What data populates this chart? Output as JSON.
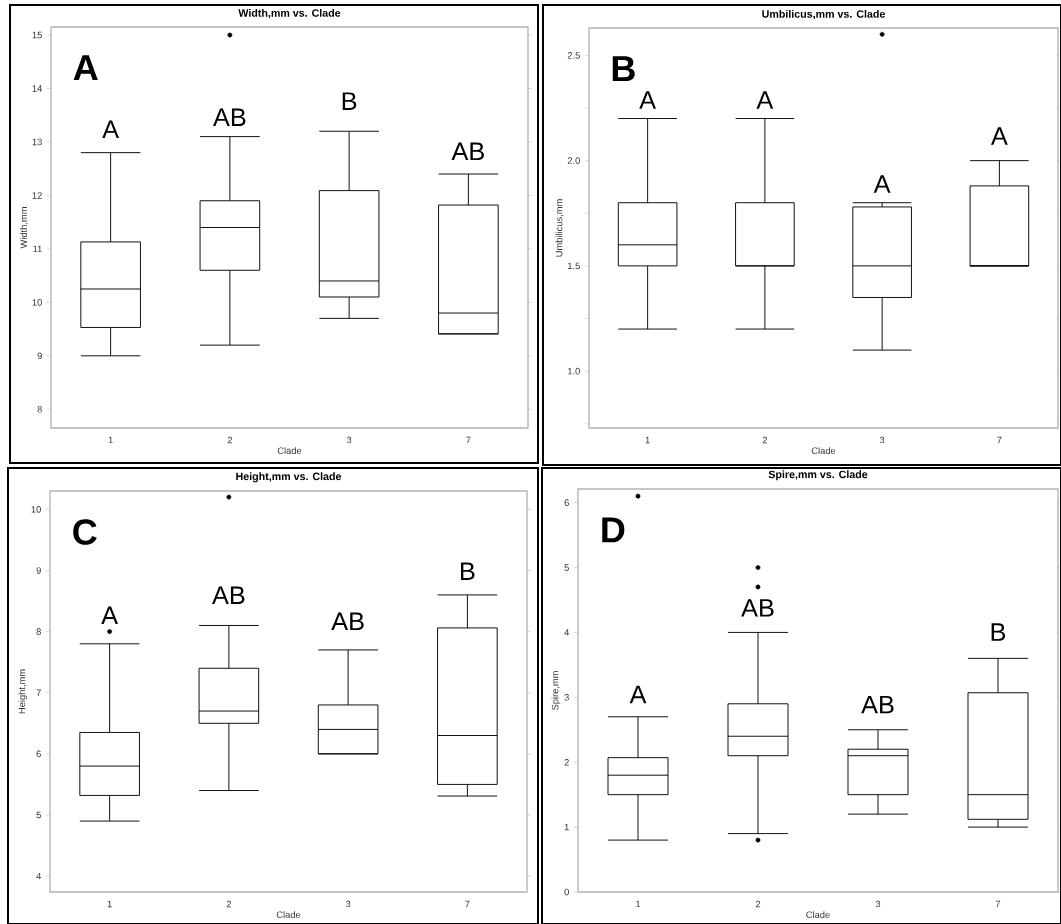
{
  "chart_data": [
    {
      "type": "box",
      "title": "Width,mm vs. Clade",
      "xlabel": "Clade",
      "ylabel": "Width,mm",
      "categories": [
        "1",
        "2",
        "3",
        "7"
      ],
      "boxes": [
        {
          "low": 9.0,
          "q1": 9.53,
          "median": 10.25,
          "q3": 11.13,
          "high": 12.8
        },
        {
          "low": 9.2,
          "q1": 10.6,
          "median": 11.4,
          "q3": 11.9,
          "high": 13.1,
          "outliers": [
            15.0
          ]
        },
        {
          "low": 9.7,
          "q1": 10.1,
          "median": 10.4,
          "q3": 12.09,
          "high": 13.2
        },
        {
          "low": 9.41,
          "q1": 9.41,
          "median": 9.8,
          "q3": 11.82,
          "high": 12.4
        }
      ],
      "ylim": [
        7.65,
        15.15
      ],
      "yticks": [
        8,
        9,
        10,
        11,
        12,
        13,
        14,
        15
      ],
      "annotations": [
        "A",
        "A",
        "AB",
        "B",
        "AB"
      ]
    },
    {
      "type": "box",
      "title": "Umbilicus,mm vs. Clade",
      "xlabel": "Clade",
      "ylabel": "Umbilicus,mm",
      "categories": [
        "1",
        "2",
        "3",
        "7"
      ],
      "boxes": [
        {
          "low": 1.2,
          "q1": 1.5,
          "median": 1.6,
          "q3": 1.8,
          "high": 2.2
        },
        {
          "low": 1.2,
          "q1": 1.5,
          "median": 1.5,
          "q3": 1.8,
          "high": 2.2
        },
        {
          "low": 1.1,
          "q1": 1.35,
          "median": 1.5,
          "q3": 1.78,
          "high": 1.8,
          "outliers": [
            2.6
          ]
        },
        {
          "low": 1.5,
          "q1": 1.5,
          "median": 1.5,
          "q3": 1.88,
          "high": 2.0
        }
      ],
      "ylim": [
        0.73,
        2.63
      ],
      "yticks": [
        {
          "value": 0.75,
          "label": null
        },
        {
          "value": 1.0,
          "label": "1.0"
        },
        {
          "value": 1.25,
          "label": null
        },
        {
          "value": 1.5,
          "label": "1.5"
        },
        {
          "value": 1.75,
          "label": null
        },
        {
          "value": 2.0,
          "label": "2.0"
        },
        {
          "value": 2.25,
          "label": null
        },
        {
          "value": 2.5,
          "label": "2.5"
        }
      ],
      "annotations": [
        "B",
        "A",
        "A",
        "A",
        "A"
      ]
    },
    {
      "type": "box",
      "title": "Height,mm vs. Clade",
      "xlabel": "Clade",
      "ylabel": "Height,mm",
      "categories": [
        "1",
        "2",
        "3",
        "7"
      ],
      "boxes": [
        {
          "low": 4.9,
          "q1": 5.32,
          "median": 5.8,
          "q3": 6.35,
          "high": 7.8,
          "outliers": [
            8.0
          ]
        },
        {
          "low": 5.4,
          "q1": 6.5,
          "median": 6.7,
          "q3": 7.4,
          "high": 8.1,
          "outliers": [
            10.2
          ]
        },
        {
          "low": 6.0,
          "q1": 6.0,
          "median": 6.4,
          "q3": 6.8,
          "high": 7.7
        },
        {
          "low": 5.31,
          "q1": 5.5,
          "median": 6.3,
          "q3": 8.06,
          "high": 8.6
        }
      ],
      "ylim": [
        3.74,
        10.3
      ],
      "yticks": [
        4,
        5,
        6,
        7,
        8,
        9,
        10
      ],
      "annotations": [
        "C",
        "A",
        "AB",
        "AB",
        "B"
      ]
    },
    {
      "type": "box",
      "title": "Spire,mm vs. Clade",
      "xlabel": "Clade",
      "ylabel": "Spire,mm",
      "categories": [
        "1",
        "2",
        "3",
        "7"
      ],
      "boxes": [
        {
          "low": 0.8,
          "q1": 1.5,
          "median": 1.8,
          "q3": 2.07,
          "high": 2.7,
          "outliers": [
            6.1
          ]
        },
        {
          "low": 0.9,
          "q1": 2.1,
          "median": 2.4,
          "q3": 2.9,
          "high": 4.0,
          "outliers": [
            5.0,
            4.7,
            0.8
          ]
        },
        {
          "low": 1.2,
          "q1": 1.5,
          "median": 2.1,
          "q3": 2.2,
          "high": 2.5
        },
        {
          "low": 1.0,
          "q1": 1.12,
          "median": 1.5,
          "q3": 3.07,
          "high": 3.6
        }
      ],
      "ylim": [
        0,
        6.21
      ],
      "yticks": [
        0,
        1,
        2,
        3,
        4,
        5,
        6
      ],
      "annotations": [
        "D",
        "A",
        "AB",
        "AB",
        "B"
      ]
    }
  ]
}
